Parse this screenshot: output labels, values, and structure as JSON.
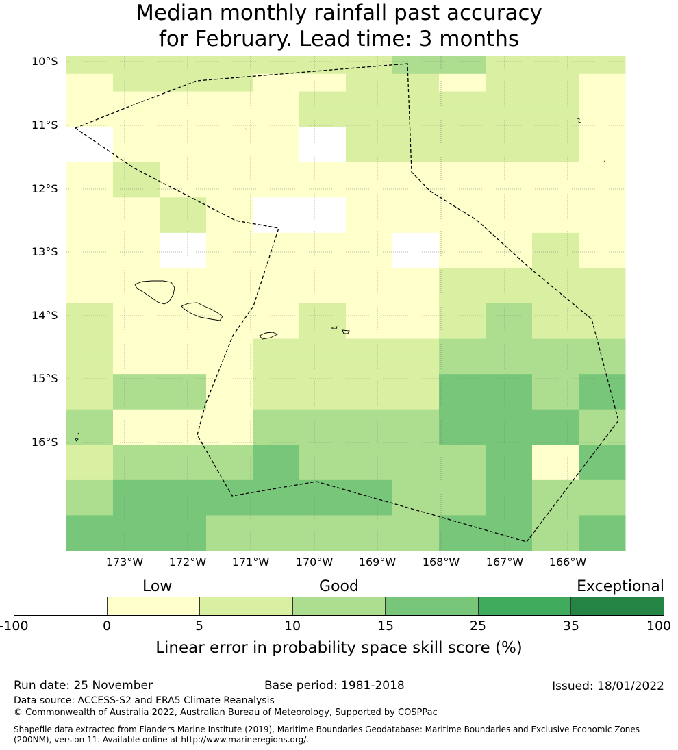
{
  "title": {
    "line1": "Median monthly rainfall past accuracy",
    "line2": "for February. Lead time: 3 months"
  },
  "map": {
    "lat_labels": [
      "10°S",
      "11°S",
      "12°S",
      "13°S",
      "14°S",
      "15°S",
      "16°S"
    ],
    "lon_labels": [
      "173°W",
      "172°W",
      "171°W",
      "170°W",
      "169°W",
      "168°W",
      "167°W",
      "166°W"
    ],
    "rows": [
      "aaaaaaabbaaa",
      "0aaa00aa0aa0",
      "00000aaaaaa0",
      "00000aaaaaa0",
      "w0000waaaaa0",
      "w0000waaaaa0",
      "0a0000000000",
      "0a0000000000",
      "00a0ww000000",
      "00a0ww000000",
      "00w0000w00a0",
      "00w0000w00a0",
      "00000000aaaa",
      "00000000aaaa",
      "a0000a00abaa",
      "a0000a00abaa",
      "a000aaaabbbb",
      "a000aaaabbbb",
      "abb0aaaaccbc",
      "abb0aaaaccbc",
      "b000bbbbcccb",
      "b000bbbbcccb",
      "abbbcbbbbc0c",
      "abbbcbbbbc0c",
      "bccccccbbcbb",
      "bccccccbbcbb",
      "cccbbbbbccbc",
      "cccbbbbbccbc"
    ],
    "cell_colors": {
      "w": "#ffffff",
      "0": "#ffffcc",
      "a": "#d9f0a3",
      "b": "#addd8e",
      "c": "#78c679"
    }
  },
  "colorbar": {
    "categories": [
      "Low",
      "Good",
      "Exceptional"
    ],
    "colors": [
      "#ffffff",
      "#ffffcc",
      "#d9f0a3",
      "#addd8e",
      "#78c679",
      "#41ab5d",
      "#238443"
    ],
    "ticks": [
      "-100",
      "0",
      "5",
      "10",
      "15",
      "25",
      "35",
      "100"
    ],
    "title": "Linear error in probability space skill score (%)"
  },
  "footer": {
    "run_date": "Run date: 25 November",
    "base_period": "Base period: 1981-2018",
    "issued": "Issued: 18/01/2022",
    "data_source": "Data source: ACCESS-S2 and ERA5 Climate Reanalysis",
    "copyright": "© Commonwealth of Australia 2022, Australian Bureau of Meteorology, Supported by COSPPac",
    "shapefile": "Shapefile data extracted from Flanders Marine Institute (2019), Maritime Boundaries Geodatabase: Maritime Boundaries and Exclusive Economic Zones (200NM), version 11. Available online at http://www.marineregions.org/."
  }
}
